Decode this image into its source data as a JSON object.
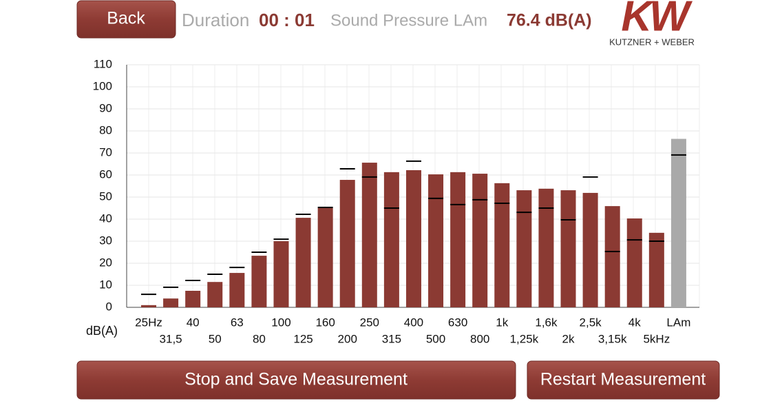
{
  "header": {
    "back": "Back",
    "duration_label": "Duration",
    "duration": "00 : 01",
    "pressure_label": "Sound Pressure LAm",
    "pressure": "76.4 dB(A)"
  },
  "logo": {
    "mark": "KW",
    "text": "KUTZNER + WEBER"
  },
  "buttons": {
    "stop": "Stop and Save Measurement",
    "restart": "Restart Measurement"
  },
  "chart_data": {
    "type": "bar",
    "x_label": "dB(A)",
    "categories": [
      "25Hz",
      "31,5",
      "40",
      "50",
      "63",
      "80",
      "100",
      "125",
      "160",
      "200",
      "250",
      "315",
      "400",
      "500",
      "630",
      "800",
      "1k",
      "1,25k",
      "1,6k",
      "2k",
      "2,5k",
      "3,15k",
      "4k",
      "5kHz",
      "LAm"
    ],
    "series": [
      {
        "colors": [
          "#8b3a33",
          "#8b3a33",
          "#8b3a33",
          "#8b3a33",
          "#8b3a33",
          "#8b3a33",
          "#8b3a33",
          "#8b3a33",
          "#8b3a33",
          "#8b3a33",
          "#8b3a33",
          "#8b3a33",
          "#8b3a33",
          "#8b3a33",
          "#8b3a33",
          "#8b3a33",
          "#8b3a33",
          "#8b3a33",
          "#8b3a33",
          "#8b3a33",
          "#8b3a33",
          "#8b3a33",
          "#8b3a33",
          "#8b3a33",
          "#a9a9a9"
        ],
        "values": [
          1,
          4,
          7.5,
          11.5,
          15.6,
          23.4,
          30,
          40.6,
          45,
          57.8,
          65.6,
          61.3,
          62.2,
          60.3,
          61.3,
          60.6,
          56.3,
          53.1,
          53.8,
          53.1,
          51.9,
          45.9,
          40.3,
          33.8,
          76.4
        ]
      },
      {
        "type": "marker",
        "color": "#000000",
        "values": [
          5.9,
          9.1,
          12.2,
          15,
          18.1,
          25,
          30.9,
          42.2,
          45.3,
          62.8,
          59.1,
          45,
          66.3,
          49.4,
          46.6,
          48.8,
          47.2,
          43.1,
          45,
          39.7,
          59.1,
          25.3,
          30.6,
          30,
          69.1
        ]
      }
    ],
    "ylim": [
      0,
      110
    ],
    "yticks": [
      0,
      10,
      20,
      30,
      40,
      50,
      60,
      70,
      80,
      90,
      100,
      110
    ],
    "grid": true
  }
}
